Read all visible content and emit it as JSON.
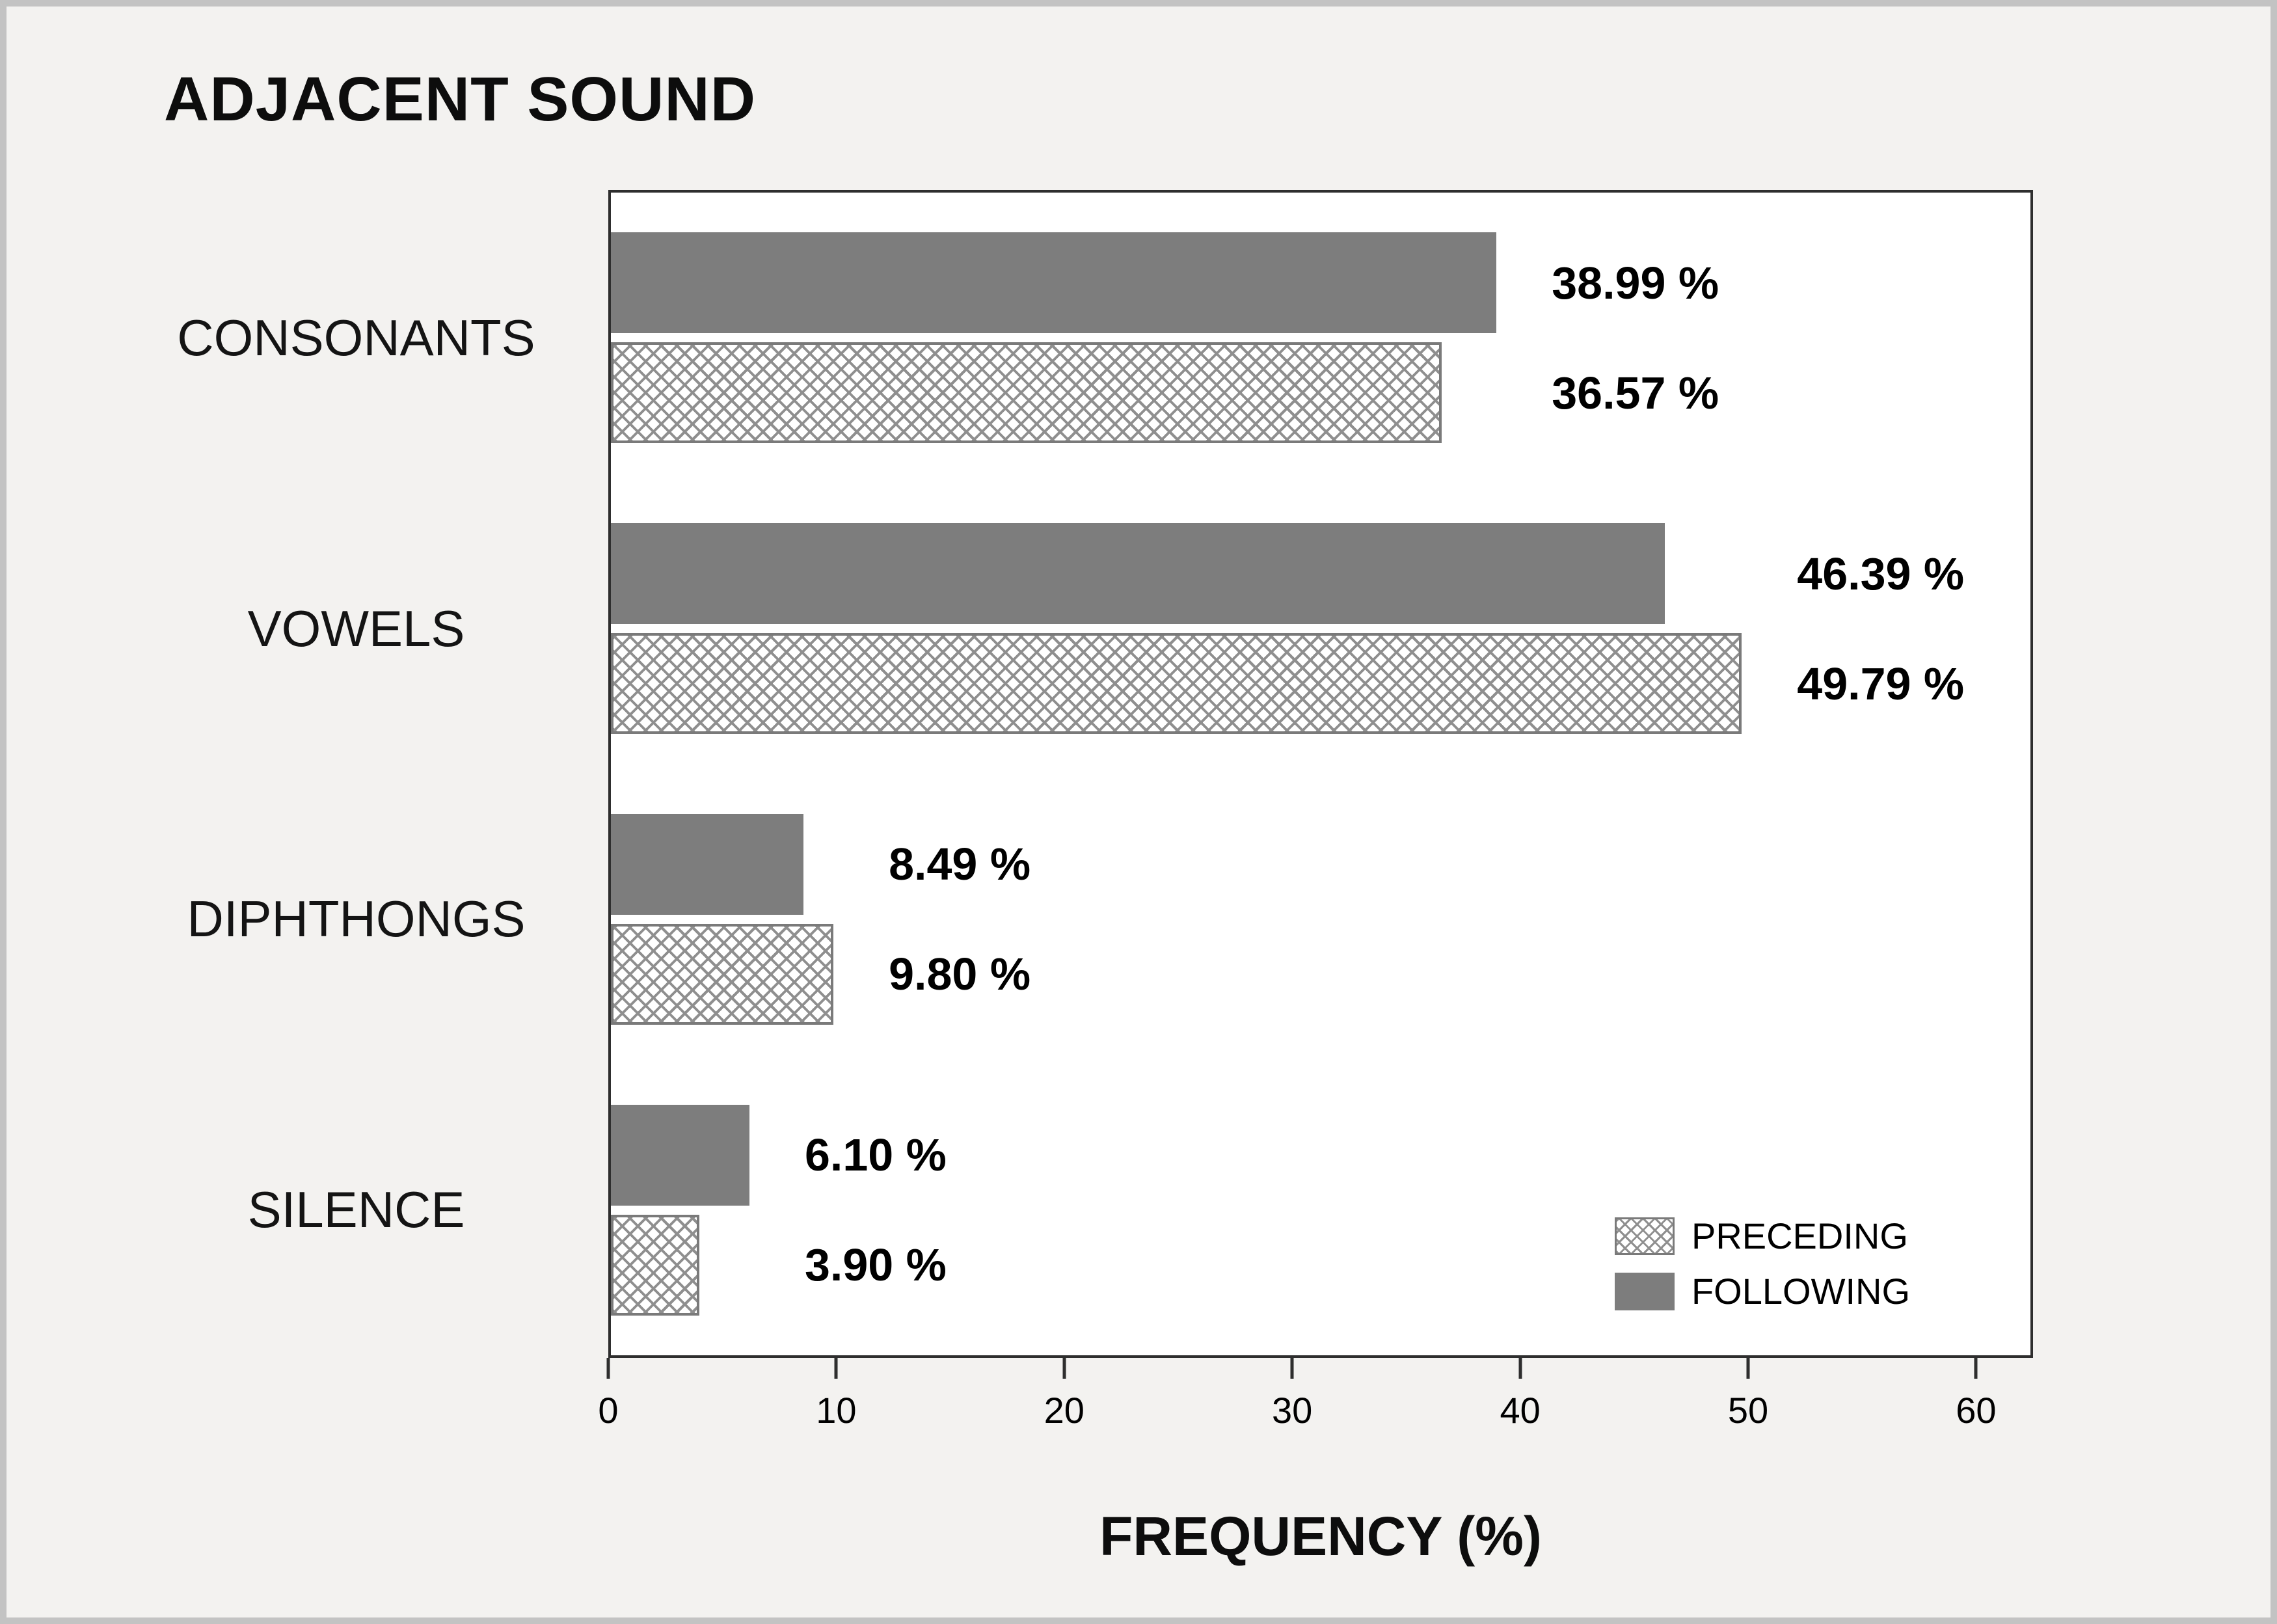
{
  "title": "ADJACENT SOUND",
  "chart_data": {
    "type": "bar",
    "orientation": "horizontal",
    "title": "ADJACENT SOUND",
    "categories": [
      "CONSONANTS",
      "VOWELS",
      "DIPHTHONGS",
      "SILENCE"
    ],
    "series": [
      {
        "name": "FOLLOWING",
        "style": "solid",
        "values": [
          38.99,
          46.39,
          8.49,
          6.1
        ],
        "labels": [
          "38.99 %",
          "46.39 %",
          "8.49 %",
          "6.10 %"
        ]
      },
      {
        "name": "PRECEDING",
        "style": "crosshatch",
        "values": [
          36.57,
          49.79,
          9.8,
          3.9
        ],
        "labels": [
          "36.57 %",
          "49.79 %",
          "9.80 %",
          "3.90 %"
        ]
      }
    ],
    "xlabel": "FREQUENCY (%)",
    "x_ticks": [
      "0",
      "10",
      "20",
      "30",
      "40",
      "50",
      "60"
    ],
    "xlim": [
      0,
      62.5
    ],
    "grid": false,
    "legend": [
      {
        "label": "PRECEDING",
        "style": "crosshatch"
      },
      {
        "label": "FOLLOWING",
        "style": "solid"
      }
    ],
    "legend_position": "bottom-right-inside",
    "colors": {
      "bar_solid": "#7d7d7d",
      "hatch_line": "#8f8f8f",
      "plot_background": "#ffffff",
      "page_background": "#f3f2f0"
    }
  }
}
